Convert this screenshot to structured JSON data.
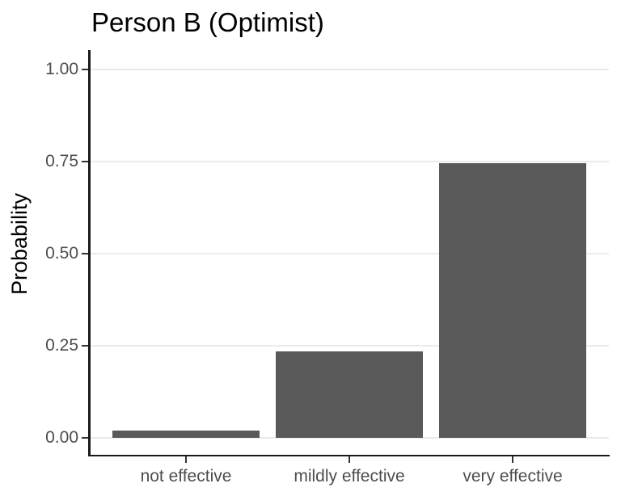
{
  "figure": {
    "title": "Person B (Optimist)"
  },
  "chart_data": {
    "type": "bar",
    "title": "Person B (Optimist)",
    "categories": [
      "not effective",
      "mildly effective",
      "very effective"
    ],
    "values": [
      0.02,
      0.235,
      0.745
    ],
    "xlabel": "",
    "ylabel": "Probability",
    "ylim": [
      0,
      1
    ],
    "yticks": [
      0,
      0.25,
      0.5,
      0.75,
      1
    ],
    "ytick_labels": [
      "0.00",
      "0.25",
      "0.50",
      "0.75",
      "1.00"
    ],
    "grid": "horizontal-only",
    "legend": "none",
    "colors": {
      "bar_fill": "#595959",
      "gridline": "#ebebeb",
      "axis_line": "#1a1a1a",
      "tick_mark": "#333333",
      "tick_label": "#4d4d4d",
      "title_text": "#000000",
      "background": "#ffffff"
    }
  }
}
